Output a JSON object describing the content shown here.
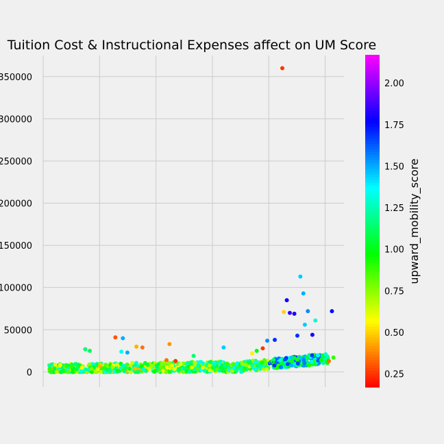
{
  "chart_data": {
    "type": "scatter",
    "title": "Tuition Cost & Instructional Expenses affect on UM Score",
    "xlabel": "",
    "ylabel": "",
    "ylim": [
      -18000,
      375000
    ],
    "yticks": [
      0,
      50000,
      100000,
      150000,
      200000,
      250000,
      300000,
      350000
    ],
    "ytick_labels": [
      "0",
      "50000",
      "100000",
      "150000",
      "200000",
      "250000",
      "300000",
      "350000"
    ],
    "xticks_shown_without_labels": 6,
    "grid": true,
    "colorbar": {
      "label": "upward_mobility_score",
      "colormap": "gist_rainbow",
      "range": [
        0.17,
        2.17
      ],
      "ticks": [
        0.25,
        0.5,
        0.75,
        1.0,
        1.25,
        1.5,
        1.75,
        2.0
      ],
      "tick_labels": [
        "0.25",
        "0.50",
        "0.75",
        "1.00",
        "1.25",
        "1.50",
        "1.75",
        "2.00"
      ]
    },
    "x_domain": [
      0,
      1
    ],
    "points_notable": [
      {
        "x": 0.795,
        "y": 360000,
        "score": 0.25
      },
      {
        "x": 0.855,
        "y": 113000,
        "score": 1.45
      },
      {
        "x": 0.81,
        "y": 85000,
        "score": 1.8
      },
      {
        "x": 0.865,
        "y": 93000,
        "score": 1.5
      },
      {
        "x": 0.82,
        "y": 70000,
        "score": 1.85
      },
      {
        "x": 0.835,
        "y": 69000,
        "score": 1.8
      },
      {
        "x": 0.8,
        "y": 71000,
        "score": 0.5
      },
      {
        "x": 0.88,
        "y": 72000,
        "score": 1.55
      },
      {
        "x": 0.96,
        "y": 72000,
        "score": 1.75
      },
      {
        "x": 0.87,
        "y": 56000,
        "score": 1.45
      },
      {
        "x": 0.905,
        "y": 61000,
        "score": 1.3
      },
      {
        "x": 0.895,
        "y": 44000,
        "score": 1.8
      },
      {
        "x": 0.845,
        "y": 43000,
        "score": 1.7
      },
      {
        "x": 0.24,
        "y": 41000,
        "score": 0.3
      },
      {
        "x": 0.265,
        "y": 40000,
        "score": 1.5
      },
      {
        "x": 0.42,
        "y": 33000,
        "score": 0.4
      },
      {
        "x": 0.77,
        "y": 38000,
        "score": 1.7
      },
      {
        "x": 0.745,
        "y": 37000,
        "score": 1.55
      },
      {
        "x": 0.6,
        "y": 29000,
        "score": 1.45
      },
      {
        "x": 0.31,
        "y": 30000,
        "score": 0.45
      },
      {
        "x": 0.33,
        "y": 29000,
        "score": 0.35
      },
      {
        "x": 0.14,
        "y": 27000,
        "score": 1.15
      },
      {
        "x": 0.155,
        "y": 25000,
        "score": 1.1
      },
      {
        "x": 0.26,
        "y": 24000,
        "score": 1.35
      },
      {
        "x": 0.28,
        "y": 23000,
        "score": 1.5
      },
      {
        "x": 0.73,
        "y": 28000,
        "score": 0.25
      },
      {
        "x": 0.71,
        "y": 25000,
        "score": 1.0
      },
      {
        "x": 0.95,
        "y": 13000,
        "score": 0.35
      },
      {
        "x": 0.965,
        "y": 17000,
        "score": 0.9
      },
      {
        "x": 0.695,
        "y": 22000,
        "score": 0.55
      },
      {
        "x": 0.5,
        "y": 19000,
        "score": 1.15
      },
      {
        "x": 0.44,
        "y": 13000,
        "score": 0.25
      },
      {
        "x": 0.41,
        "y": 14000,
        "score": 0.35
      }
    ]
  }
}
